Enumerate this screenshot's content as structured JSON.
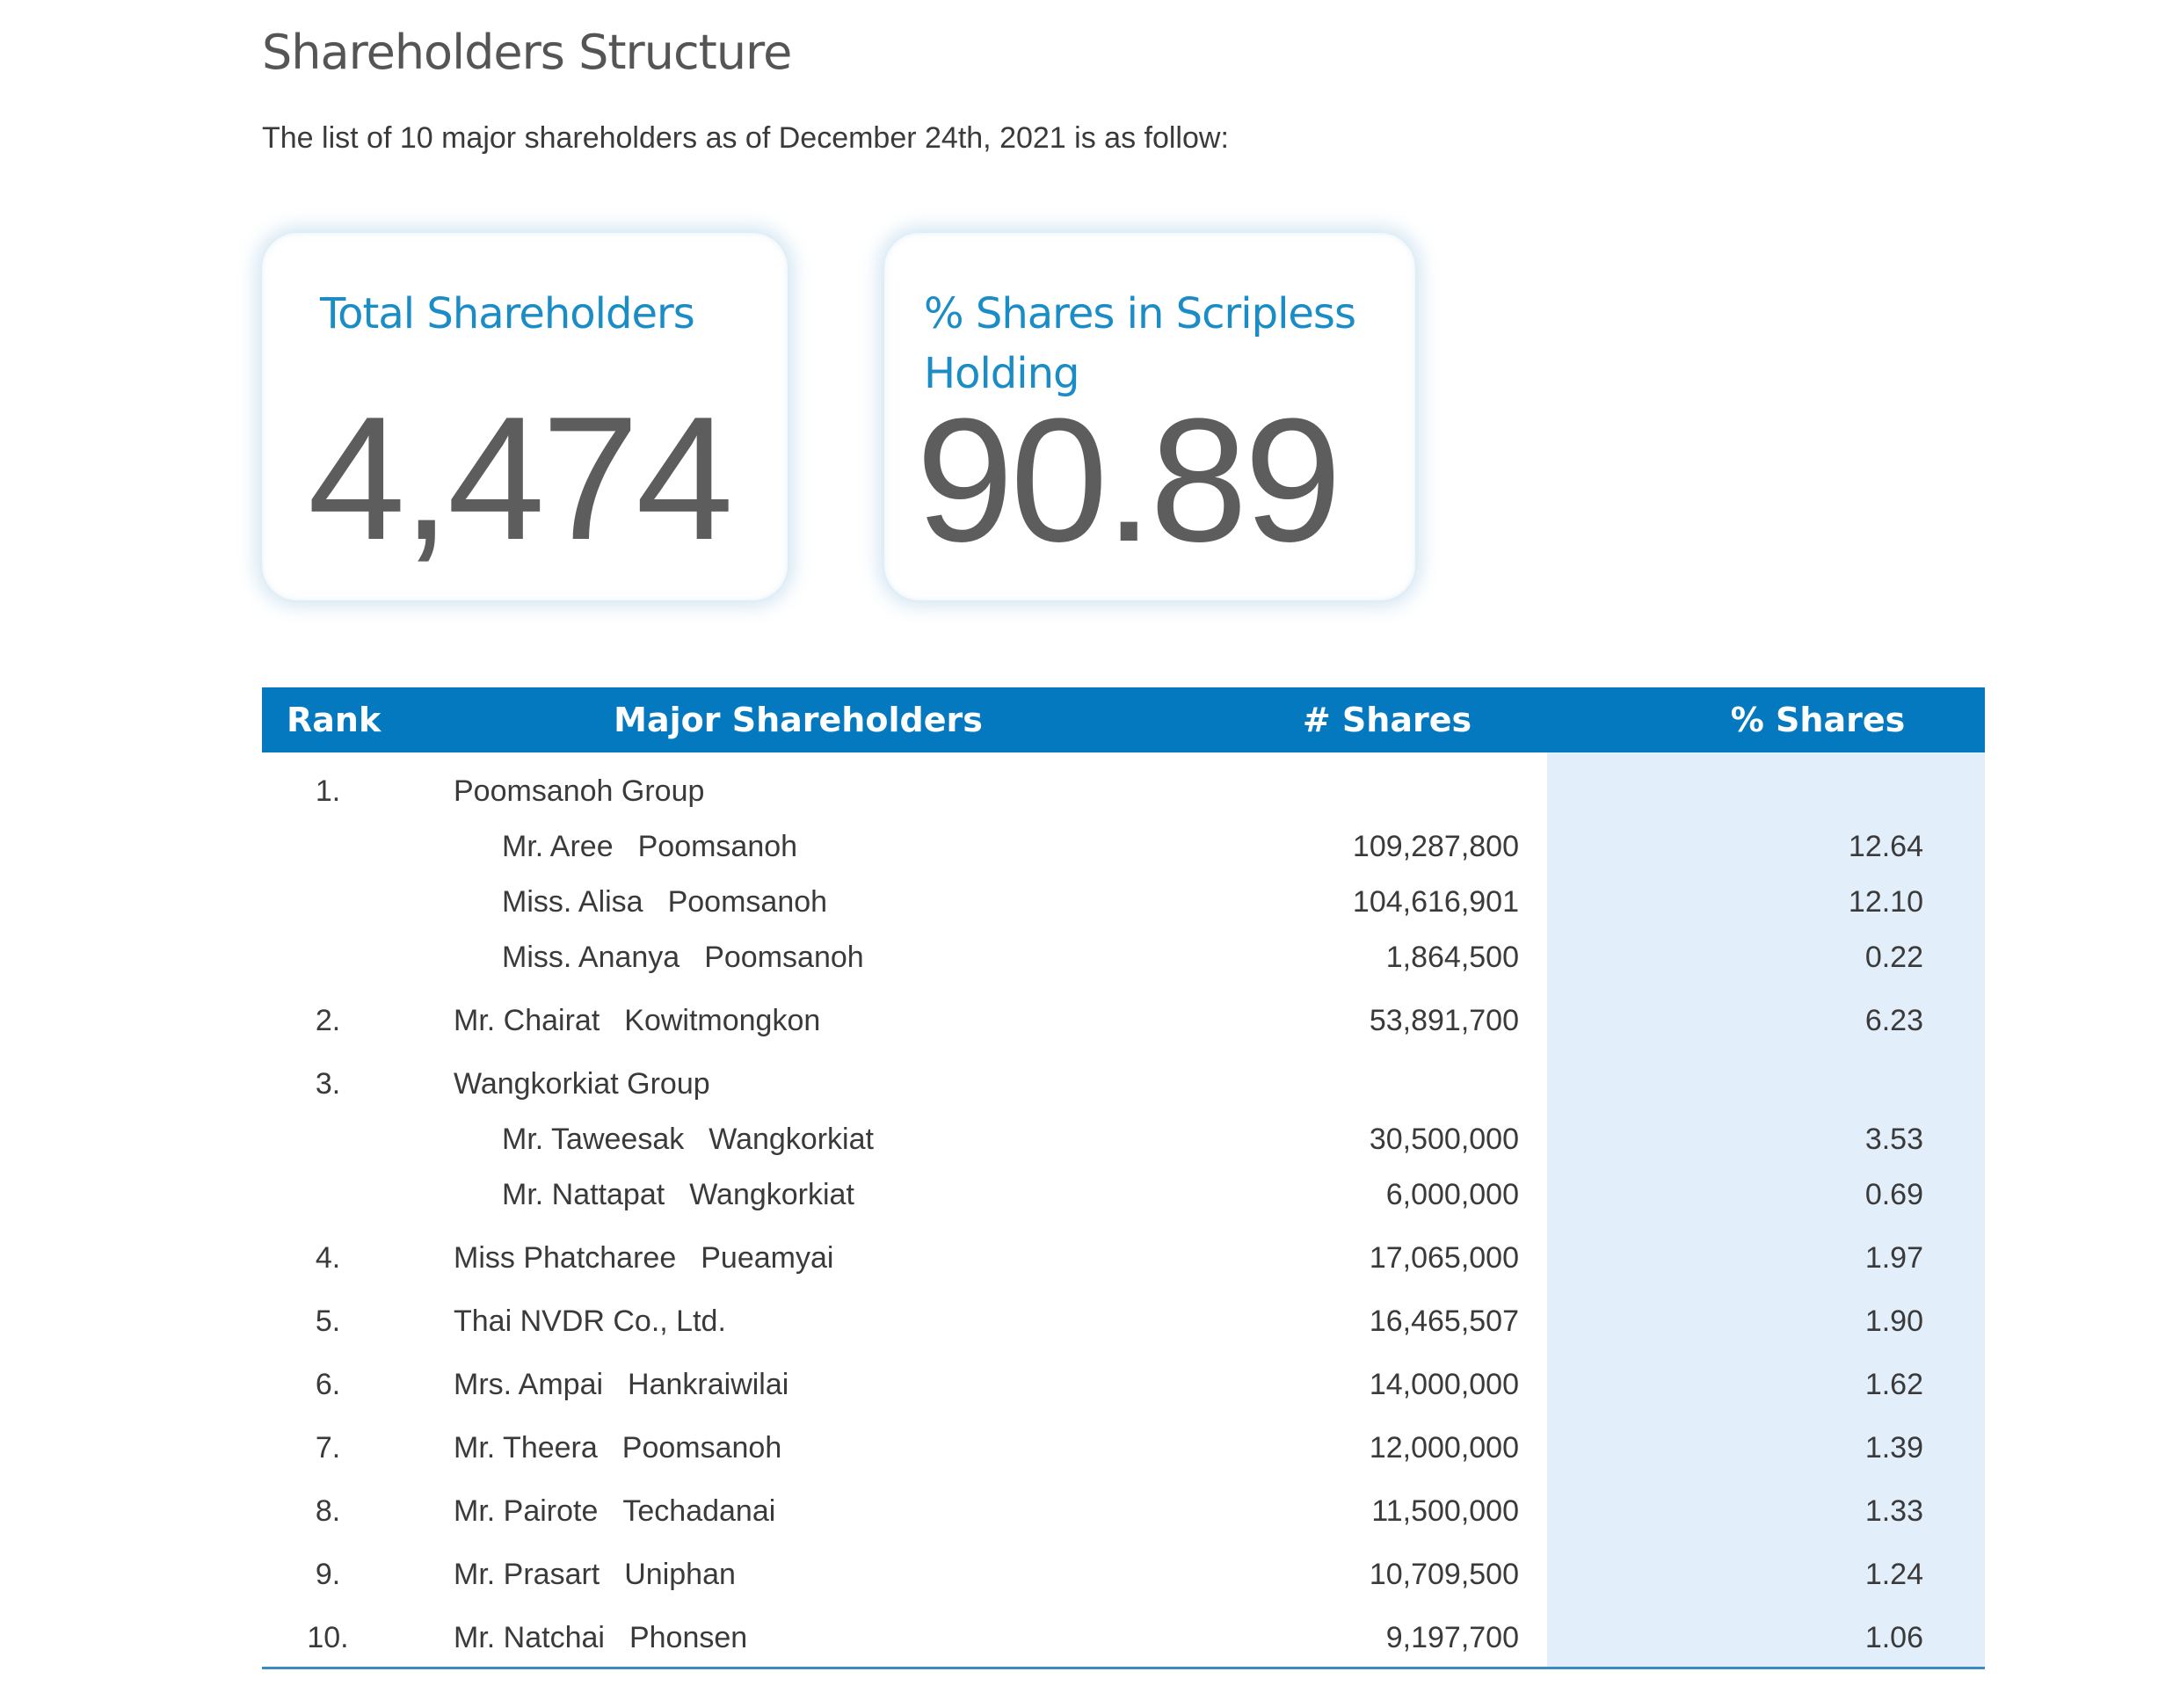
{
  "title": "Shareholders Structure",
  "intro": "The list of 10 major shareholders as of December 24th, 2021 is as follow:",
  "cards": [
    {
      "label": "Total Shareholders",
      "value": "4,474"
    },
    {
      "label": "% Shares in Scripless Holding",
      "value": "90.89"
    }
  ],
  "table": {
    "headers": {
      "rank": "Rank",
      "name": "Major Shareholders",
      "shares": "# Shares",
      "pct": "% Shares"
    },
    "rows": [
      {
        "rank": "1.",
        "first": "Poomsanoh Group",
        "last": "",
        "shares": "",
        "pct": ""
      },
      {
        "rank": "",
        "first": "Mr. Aree",
        "last": "Poomsanoh",
        "shares": "109,287,800",
        "pct": "12.64"
      },
      {
        "rank": "",
        "first": "Miss. Alisa",
        "last": "Poomsanoh",
        "shares": "104,616,901",
        "pct": "12.10"
      },
      {
        "rank": "",
        "first": "Miss. Ananya",
        "last": "Poomsanoh",
        "shares": "1,864,500",
        "pct": "0.22"
      },
      {
        "rank": "2.",
        "first": "Mr. Chairat",
        "last": "Kowitmongkon",
        "shares": "53,891,700",
        "pct": "6.23"
      },
      {
        "rank": "3.",
        "first": "Wangkorkiat Group",
        "last": "",
        "shares": "",
        "pct": ""
      },
      {
        "rank": "",
        "first": "Mr. Taweesak",
        "last": "Wangkorkiat",
        "shares": "30,500,000",
        "pct": "3.53"
      },
      {
        "rank": "",
        "first": "Mr. Nattapat",
        "last": "Wangkorkiat",
        "shares": "6,000,000",
        "pct": "0.69"
      },
      {
        "rank": "4.",
        "first": "Miss Phatcharee",
        "last": "Pueamyai",
        "shares": "17,065,000",
        "pct": "1.97"
      },
      {
        "rank": "5.",
        "first": "Thai NVDR Co., Ltd.",
        "last": "",
        "shares": "16,465,507",
        "pct": "1.90"
      },
      {
        "rank": "6.",
        "first": "Mrs. Ampai",
        "last": "Hankraiwilai",
        "shares": "14,000,000",
        "pct": "1.62"
      },
      {
        "rank": "7.",
        "first": "Mr. Theera",
        "last": "Poomsanoh",
        "shares": "12,000,000",
        "pct": "1.39"
      },
      {
        "rank": "8.",
        "first": "Mr. Pairote",
        "last": "Techadanai",
        "shares": "11,500,000",
        "pct": "1.33"
      },
      {
        "rank": "9.",
        "first": "Mr. Prasart",
        "last": "Uniphan",
        "shares": "10,709,500",
        "pct": "1.24"
      },
      {
        "rank": "10.",
        "first": "Mr. Natchai",
        "last": "Phonsen",
        "shares": "9,197,700",
        "pct": "1.06"
      }
    ]
  },
  "colors": {
    "header_bg": "#0579bf",
    "accent_text": "#1a8cc6",
    "shaded_column": "#e2eef9"
  }
}
